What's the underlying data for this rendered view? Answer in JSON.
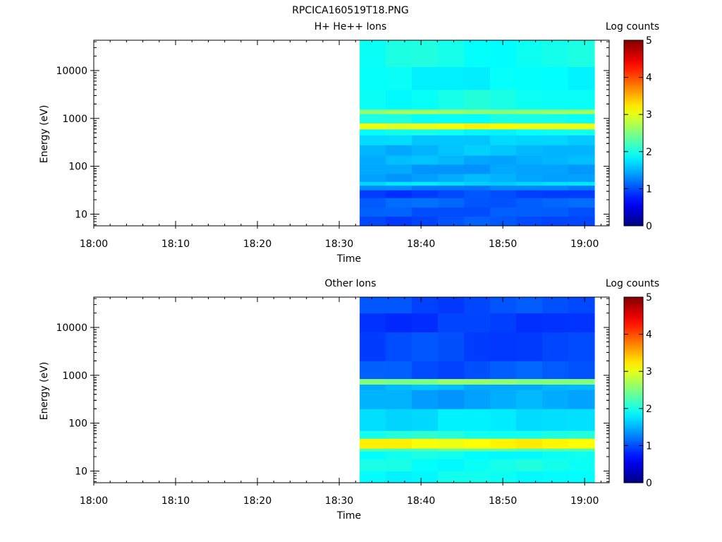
{
  "figure_title": "RPCICA160519T18.PNG",
  "chart_data": [
    {
      "type": "heatmap",
      "title": "H+ He++ Ions",
      "xlabel": "Time",
      "ylabel": "Energy (eV)",
      "y_scale": "log",
      "ylim": [
        5.7,
        43000
      ],
      "x_ticks": [
        "18:00",
        "18:10",
        "18:20",
        "18:30",
        "18:40",
        "18:50",
        "19:00"
      ],
      "x_tick_minutes": [
        0,
        10,
        20,
        30,
        40,
        50,
        60
      ],
      "xlim_minutes": [
        0,
        63
      ],
      "y_ticks": [
        10,
        100,
        1000,
        10000
      ],
      "y_tick_labels": [
        "10",
        "100",
        "1000",
        "10000"
      ],
      "data_time_range_minutes": [
        32.5,
        61.2
      ],
      "time_columns": 9,
      "colorbar": {
        "label": "Log counts",
        "min": 0,
        "max": 5,
        "ticks": [
          "0",
          "1",
          "2",
          "3",
          "4",
          "5"
        ],
        "colormap": "jet"
      },
      "energy_bands": [
        {
          "e_low": 5.7,
          "e_high": 9,
          "log_counts": 1.0
        },
        {
          "e_low": 9,
          "e_high": 14,
          "log_counts": 1.05
        },
        {
          "e_low": 14,
          "e_high": 22,
          "log_counts": 1.1
        },
        {
          "e_low": 22,
          "e_high": 32,
          "log_counts": 0.95
        },
        {
          "e_low": 32,
          "e_high": 40,
          "log_counts": 1.25
        },
        {
          "e_low": 40,
          "e_high": 48,
          "log_counts": 1.7
        },
        {
          "e_low": 48,
          "e_high": 70,
          "log_counts": 1.45
        },
        {
          "e_low": 70,
          "e_high": 110,
          "log_counts": 1.4
        },
        {
          "e_low": 110,
          "e_high": 170,
          "log_counts": 1.5
        },
        {
          "e_low": 170,
          "e_high": 280,
          "log_counts": 1.55
        },
        {
          "e_low": 280,
          "e_high": 450,
          "log_counts": 1.65
        },
        {
          "e_low": 450,
          "e_high": 600,
          "log_counts": 1.9
        },
        {
          "e_low": 600,
          "e_high": 800,
          "log_counts": 3.1
        },
        {
          "e_low": 800,
          "e_high": 1250,
          "log_counts": 1.95
        },
        {
          "e_low": 1250,
          "e_high": 1550,
          "log_counts": 2.6
        },
        {
          "e_low": 1550,
          "e_high": 4000,
          "log_counts": 1.95
        },
        {
          "e_low": 4000,
          "e_high": 12000,
          "log_counts": 1.85
        },
        {
          "e_low": 12000,
          "e_high": 43000,
          "log_counts": 1.95
        }
      ],
      "column_offsets": [
        0.05,
        -0.1,
        0.08,
        -0.05,
        0.1,
        -0.08,
        0.03,
        -0.04,
        0.06
      ]
    },
    {
      "type": "heatmap",
      "title": "Other Ions",
      "xlabel": "Time",
      "ylabel": "Energy (eV)",
      "y_scale": "log",
      "ylim": [
        5.7,
        43000
      ],
      "x_ticks": [
        "18:00",
        "18:10",
        "18:20",
        "18:30",
        "18:40",
        "18:50",
        "19:00"
      ],
      "x_tick_minutes": [
        0,
        10,
        20,
        30,
        40,
        50,
        60
      ],
      "xlim_minutes": [
        0,
        63
      ],
      "y_ticks": [
        10,
        100,
        1000,
        10000
      ],
      "y_tick_labels": [
        "10",
        "100",
        "1000",
        "10000"
      ],
      "data_time_range_minutes": [
        32.5,
        61.2
      ],
      "time_columns": 9,
      "colorbar": {
        "label": "Log counts",
        "min": 0,
        "max": 5,
        "ticks": [
          "0",
          "1",
          "2",
          "3",
          "4",
          "5"
        ],
        "colormap": "jet"
      },
      "energy_bands": [
        {
          "e_low": 5.7,
          "e_high": 10,
          "log_counts": 1.9
        },
        {
          "e_low": 10,
          "e_high": 18,
          "log_counts": 1.95
        },
        {
          "e_low": 18,
          "e_high": 26,
          "log_counts": 1.9
        },
        {
          "e_low": 26,
          "e_high": 30,
          "log_counts": 2.3
        },
        {
          "e_low": 30,
          "e_high": 48,
          "log_counts": 3.15
        },
        {
          "e_low": 48,
          "e_high": 70,
          "log_counts": 2.0
        },
        {
          "e_low": 70,
          "e_high": 200,
          "log_counts": 1.75
        },
        {
          "e_low": 200,
          "e_high": 500,
          "log_counts": 1.45
        },
        {
          "e_low": 500,
          "e_high": 650,
          "log_counts": 1.5
        },
        {
          "e_low": 650,
          "e_high": 850,
          "log_counts": 2.55
        },
        {
          "e_low": 850,
          "e_high": 2000,
          "log_counts": 1.05
        },
        {
          "e_low": 2000,
          "e_high": 8000,
          "log_counts": 0.95
        },
        {
          "e_low": 8000,
          "e_high": 20000,
          "log_counts": 0.9
        },
        {
          "e_low": 20000,
          "e_high": 43000,
          "log_counts": 1.0
        }
      ],
      "column_offsets": [
        0.05,
        -0.08,
        0.1,
        -0.1,
        0.06,
        -0.05,
        0.08,
        -0.03,
        0.04
      ]
    }
  ]
}
